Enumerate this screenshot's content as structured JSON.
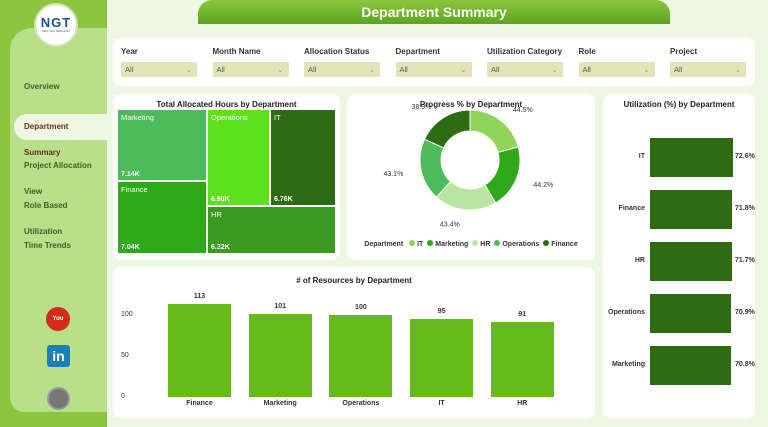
{
  "header": {
    "title": "Department Summary"
  },
  "logo": {
    "text": "NGT",
    "subtitle": "NEXT GEN TEMPLATES"
  },
  "sidebar": {
    "items": [
      {
        "label": "Overview"
      },
      {
        "label": "Department Summary",
        "active": true
      },
      {
        "label": "Project Allocation View"
      },
      {
        "label": "Role Based Utilization"
      },
      {
        "label": "Time Trends"
      }
    ],
    "social": [
      {
        "icon": "youtube-icon",
        "color": "#d42a1f"
      },
      {
        "icon": "linkedin-icon",
        "color": "#1a7fb8"
      },
      {
        "icon": "globe-icon",
        "color": "#777777"
      }
    ]
  },
  "filters": [
    {
      "label": "Year",
      "value": "All"
    },
    {
      "label": "Month Name",
      "value": "All"
    },
    {
      "label": "Allocation Status",
      "value": "All"
    },
    {
      "label": "Department",
      "value": "All"
    },
    {
      "label": "Utilization Category",
      "value": "All"
    },
    {
      "label": "Role",
      "value": "All"
    },
    {
      "label": "Project",
      "value": "All"
    }
  ],
  "chart_data": [
    {
      "type": "treemap",
      "title": "Total Allocated Hours by Department",
      "items": [
        {
          "label": "Marketing",
          "value": "7.14K",
          "color": "#4cbb5c"
        },
        {
          "label": "Finance",
          "value": "7.04K",
          "color": "#2fa81a"
        },
        {
          "label": "Operations",
          "value": "6.90K",
          "color": "#5de01e"
        },
        {
          "label": "IT",
          "value": "6.76K",
          "color": "#2e6b12"
        },
        {
          "label": "HR",
          "value": "6.32K",
          "color": "#3a9a22"
        }
      ]
    },
    {
      "type": "pie",
      "title": "Progress % by Department",
      "legend_title": "Department",
      "legend": "bottom",
      "slices": [
        {
          "name": "IT",
          "value": 44.5,
          "label": "44.5%",
          "color": "#8fd45a"
        },
        {
          "name": "Marketing",
          "value": 44.2,
          "label": "44.2%",
          "color": "#2fa81a"
        },
        {
          "name": "HR",
          "value": 43.4,
          "label": "43.4%",
          "color": "#b8e6a0"
        },
        {
          "name": "Operations",
          "value": 43.1,
          "label": "43.1%",
          "color": "#4cbb5c"
        },
        {
          "name": "Finance",
          "value": 38.9,
          "label": "38.9%",
          "color": "#2e6b12"
        }
      ]
    },
    {
      "type": "bar",
      "orientation": "horizontal",
      "title": "Utilization (%) by Department",
      "categories": [
        "IT",
        "Finance",
        "HR",
        "Operations",
        "Marketing"
      ],
      "values": [
        72.6,
        71.8,
        71.7,
        70.9,
        70.8
      ],
      "labels": [
        "72.6%",
        "71.8%",
        "71.7%",
        "70.9%",
        "70.8%"
      ],
      "color": "#2e6b12"
    },
    {
      "type": "bar",
      "title": "# of Resources by Department",
      "categories": [
        "Finance",
        "Marketing",
        "Operations",
        "IT",
        "HR"
      ],
      "values": [
        113,
        101,
        100,
        95,
        91
      ],
      "yticks": [
        "0",
        "50",
        "100"
      ],
      "ylim": [
        0,
        113
      ],
      "color": "#66bb1a"
    }
  ]
}
